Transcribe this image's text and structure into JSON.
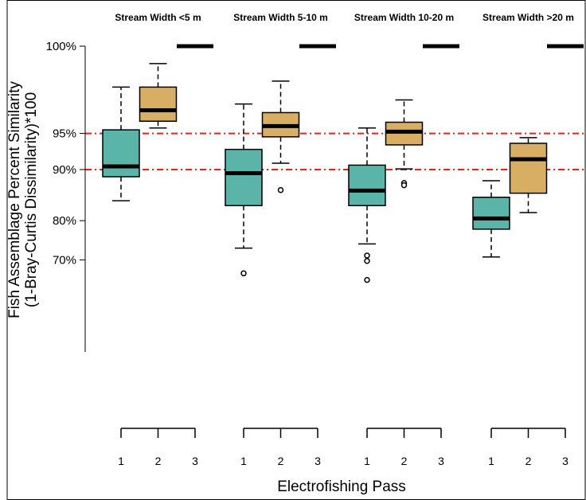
{
  "chart_data": {
    "type": "box",
    "xlabel": "Electrofishing Pass",
    "ylabel_line1": "Fish Assemblage Percent Similarity",
    "ylabel_line2": "(1-Bray-Curtis Dissimilarity)*100",
    "yticks": [
      {
        "value": 100,
        "label": "100%"
      },
      {
        "value": 95,
        "label": "95%"
      },
      {
        "value": 90,
        "label": "90%"
      },
      {
        "value": 80,
        "label": "80%"
      },
      {
        "value": 70,
        "label": "70%"
      }
    ],
    "reference_lines": [
      95,
      90
    ],
    "colors": {
      "pass1": "#5ab4a7",
      "pass2": "#d8ad64",
      "reference": "#e8201c"
    },
    "panels": [
      {
        "title": "Stream Width <5 m",
        "passes": [
          "1",
          "2",
          "3"
        ],
        "boxes": [
          {
            "pass": "1",
            "min": 84.3,
            "q1": 88.8,
            "median": 90.5,
            "q3": 95.4,
            "max": 98.9,
            "outliers": []
          },
          {
            "pass": "2",
            "min": 95.6,
            "q1": 96.3,
            "median": 97.3,
            "q3": 98.9,
            "max": 99.8,
            "outliers": []
          },
          {
            "pass": "3",
            "min": 100,
            "q1": 100,
            "median": 100,
            "q3": 100,
            "max": 100,
            "outliers": []
          }
        ]
      },
      {
        "title": "Stream Width 5-10 m",
        "passes": [
          "1",
          "2",
          "3"
        ],
        "boxes": [
          {
            "pass": "1",
            "min": 73.2,
            "q1": 83.3,
            "median": 89.4,
            "q3": 93.0,
            "max": 97.8,
            "outliers": [
              66.1
            ]
          },
          {
            "pass": "2",
            "min": 91.0,
            "q1": 94.6,
            "median": 95.8,
            "q3": 97.1,
            "max": 99.2,
            "outliers": [
              86.4
            ]
          },
          {
            "pass": "3",
            "min": 100,
            "q1": 100,
            "median": 100,
            "q3": 100,
            "max": 100,
            "outliers": []
          }
        ]
      },
      {
        "title": "Stream Width 10-20 m",
        "passes": [
          "1",
          "2",
          "3"
        ],
        "boxes": [
          {
            "pass": "1",
            "min": 74.3,
            "q1": 83.3,
            "median": 86.3,
            "q3": 90.7,
            "max": 95.6,
            "outliers": [
              71.2,
              69.7,
              64.1
            ]
          },
          {
            "pass": "2",
            "min": 90.1,
            "q1": 93.6,
            "median": 95.2,
            "q3": 96.2,
            "max": 98.1,
            "outliers": [
              87.7,
              87.3
            ]
          },
          {
            "pass": "3",
            "min": 100,
            "q1": 100,
            "median": 100,
            "q3": 100,
            "max": 100,
            "outliers": []
          }
        ]
      },
      {
        "title": "Stream Width >20 m",
        "passes": [
          "1",
          "2",
          "3"
        ],
        "boxes": [
          {
            "pass": "1",
            "min": 70.8,
            "q1": 78.0,
            "median": 80.5,
            "q3": 85.0,
            "max": 88.1,
            "outliers": []
          },
          {
            "pass": "2",
            "min": 81.8,
            "q1": 85.8,
            "median": 91.6,
            "q3": 93.8,
            "max": 94.5,
            "outliers": []
          },
          {
            "pass": "3",
            "min": 100,
            "q1": 100,
            "median": 100,
            "q3": 100,
            "max": 100,
            "outliers": []
          }
        ]
      }
    ]
  }
}
